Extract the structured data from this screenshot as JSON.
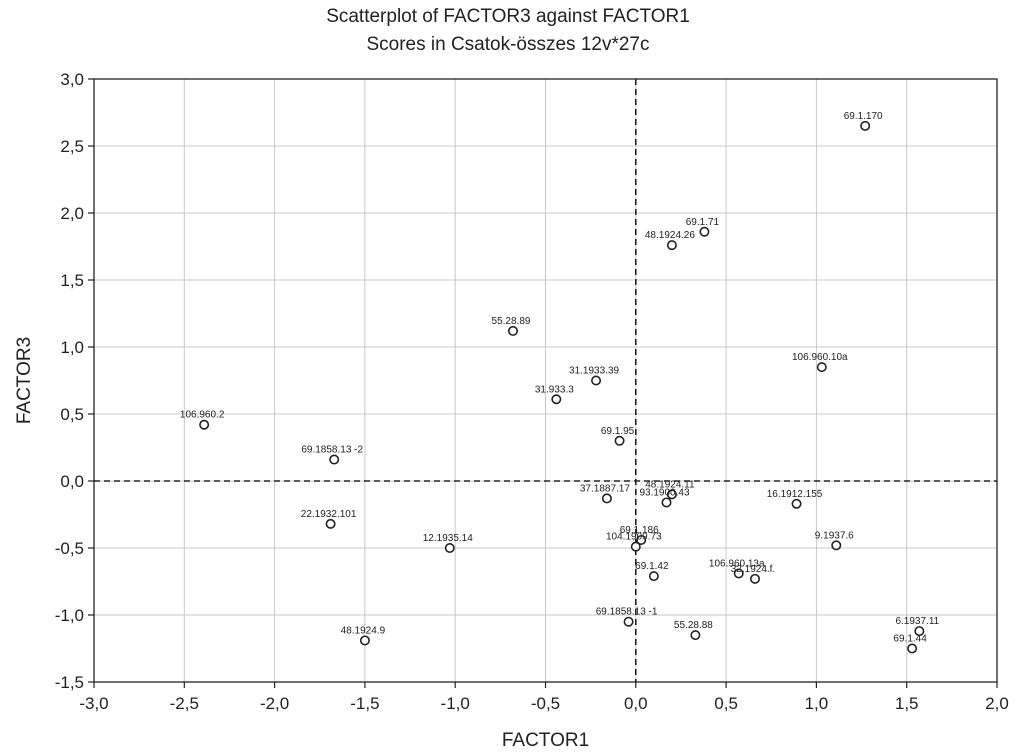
{
  "chart_data": {
    "type": "scatter",
    "title": "Scatterplot of FACTOR3 against FACTOR1",
    "subtitle": "Scores in Csatok-összes 12v*27c",
    "xlabel": "FACTOR1",
    "ylabel": "FACTOR3",
    "xlim": [
      -3.0,
      2.0
    ],
    "ylim": [
      -1.5,
      3.0
    ],
    "x_ticks": [
      "-3,0",
      "-2,5",
      "-2,0",
      "-1,5",
      "-1,0",
      "-0,5",
      "0,0",
      "0,5",
      "1,0",
      "1,5",
      "2,0"
    ],
    "y_ticks": [
      "3,0",
      "2,5",
      "2,0",
      "1,5",
      "1,0",
      "0,5",
      "0,0",
      "-0,5",
      "-1,0",
      "-1,5"
    ],
    "x_tick_values": [
      -3.0,
      -2.5,
      -2.0,
      -1.5,
      -1.0,
      -0.5,
      0.0,
      0.5,
      1.0,
      1.5,
      2.0
    ],
    "y_tick_values": [
      3.0,
      2.5,
      2.0,
      1.5,
      1.0,
      0.5,
      0.0,
      -0.5,
      -1.0,
      -1.5
    ],
    "grid": true,
    "reference_lines": {
      "x": 0.0,
      "y": 0.0,
      "style": "dashed"
    },
    "colors": {
      "axis": "#222222",
      "grid": "#c8c8c8",
      "point": "#222222"
    },
    "points": [
      {
        "label": "69.1.170",
        "x": 1.27,
        "y": 2.65
      },
      {
        "label": "69.1.71",
        "x": 0.38,
        "y": 1.86
      },
      {
        "label": "48.1924.26",
        "x": 0.2,
        "y": 1.76
      },
      {
        "label": "55.28.89",
        "x": -0.68,
        "y": 1.12
      },
      {
        "label": "106.960.10a",
        "x": 1.03,
        "y": 0.85
      },
      {
        "label": "31.1933.39",
        "x": -0.22,
        "y": 0.75
      },
      {
        "label": "31.933.3",
        "x": -0.44,
        "y": 0.61
      },
      {
        "label": "106.960.2",
        "x": -2.39,
        "y": 0.42
      },
      {
        "label": "69.1.95",
        "x": -0.09,
        "y": 0.3
      },
      {
        "label": "69.1858.13 -2",
        "x": -1.67,
        "y": 0.16
      },
      {
        "label": "37.1887.17",
        "x": -0.16,
        "y": -0.13
      },
      {
        "label": "48.1924.11",
        "x": 0.2,
        "y": -0.1
      },
      {
        "label": "93.1900.43",
        "x": 0.17,
        "y": -0.16
      },
      {
        "label": "16.1912.155",
        "x": 0.89,
        "y": -0.17
      },
      {
        "label": "22.1932.101",
        "x": -1.69,
        "y": -0.32
      },
      {
        "label": "69.1.186",
        "x": 0.03,
        "y": -0.44
      },
      {
        "label": "104.1909.73",
        "x": 0.0,
        "y": -0.49
      },
      {
        "label": "12.1935.14",
        "x": -1.03,
        "y": -0.5
      },
      {
        "label": "9.1937.6",
        "x": 1.11,
        "y": -0.48
      },
      {
        "label": "69.1.42",
        "x": 0.1,
        "y": -0.71
      },
      {
        "label": "106.960.13a",
        "x": 0.57,
        "y": -0.69
      },
      {
        "label": "32.1924.f.",
        "x": 0.66,
        "y": -0.73
      },
      {
        "label": "69.1858.13 -1",
        "x": -0.04,
        "y": -1.05
      },
      {
        "label": "55.28.88",
        "x": 0.33,
        "y": -1.15
      },
      {
        "label": "48.1924.9",
        "x": -1.5,
        "y": -1.19
      },
      {
        "label": "6.1937.11",
        "x": 1.57,
        "y": -1.12
      },
      {
        "label": "69.1.44",
        "x": 1.53,
        "y": -1.25
      }
    ]
  }
}
